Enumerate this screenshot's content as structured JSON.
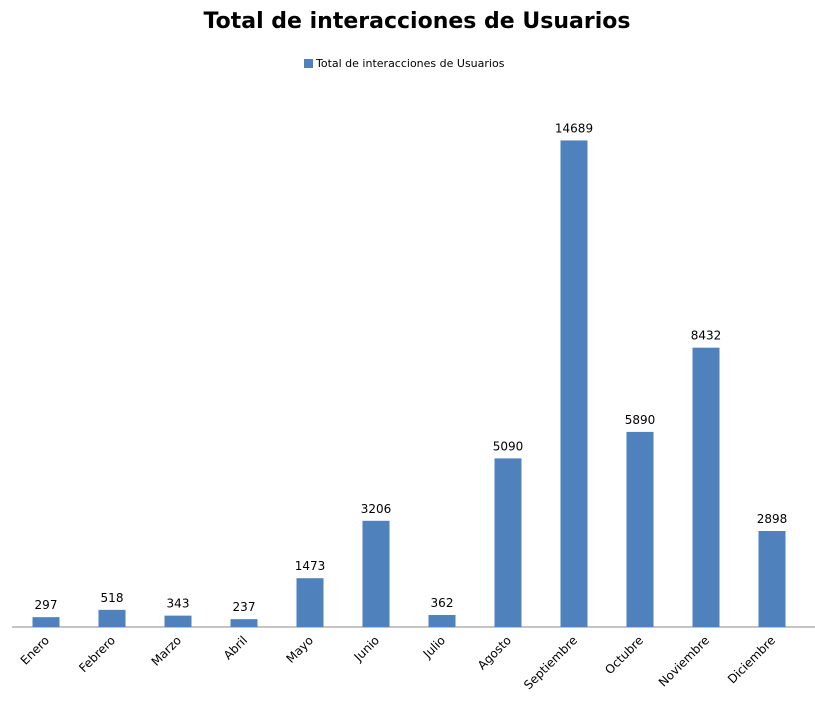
{
  "chart_data": {
    "type": "bar",
    "title": "Total de interacciones de Usuarios",
    "categories": [
      "Enero",
      "Febrero",
      "Marzo",
      "Abril",
      "Mayo",
      "Junio",
      "Julio",
      "Agosto",
      "Septiembre",
      "Octubre",
      "Noviembre",
      "Diciembre"
    ],
    "series": [
      {
        "name": "Total de interacciones de Usuarios",
        "color": "#4f81bd",
        "values": [
          297,
          518,
          343,
          237,
          1473,
          3206,
          362,
          5090,
          14689,
          5890,
          8432,
          2898
        ]
      }
    ],
    "ylim": [
      0,
      16000
    ],
    "legend": "top"
  }
}
